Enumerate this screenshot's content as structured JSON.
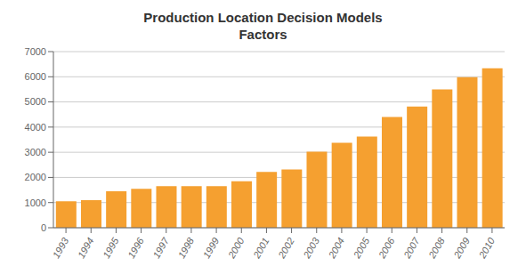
{
  "chart_data": {
    "type": "bar",
    "title": "Production Location Decision Models\nFactors",
    "categories": [
      "1993",
      "1994",
      "1995",
      "1996",
      "1997",
      "1998",
      "1999",
      "2000",
      "2001",
      "2002",
      "2003",
      "2004",
      "2005",
      "2006",
      "2007",
      "2008",
      "2009",
      "2010"
    ],
    "values": [
      1050,
      1100,
      1450,
      1550,
      1650,
      1650,
      1650,
      1850,
      2220,
      2320,
      3020,
      3380,
      3620,
      4400,
      4820,
      5500,
      5980,
      6340
    ],
    "color": "#F5A030",
    "ylim": [
      0,
      7000
    ],
    "yticks": [
      0,
      1000,
      2000,
      3000,
      4000,
      5000,
      6000,
      7000
    ],
    "grid": true
  }
}
